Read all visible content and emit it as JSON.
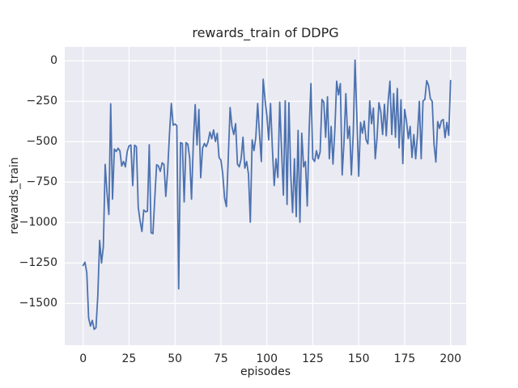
{
  "chart_data": {
    "type": "line",
    "title": "rewards_train of DDPG",
    "xlabel": "episodes",
    "ylabel": "rewards_train",
    "x_ticks": [
      0,
      25,
      50,
      75,
      100,
      125,
      150,
      175,
      200
    ],
    "x_tick_labels": [
      "0",
      "25",
      "50",
      "75",
      "100",
      "125",
      "150",
      "175",
      "200"
    ],
    "y_ticks": [
      0,
      -250,
      -500,
      -750,
      -1000,
      -1250,
      -1500
    ],
    "y_tick_labels": [
      "0",
      "−250",
      "−500",
      "−750",
      "−1000",
      "−1250",
      "−1500"
    ],
    "xlim": [
      -10,
      208.5
    ],
    "ylim": [
      -1761,
      87
    ],
    "grid": true,
    "legend": false,
    "style": "seaborn-darkgrid",
    "colors": {
      "line": "#4c72b0",
      "plot_background": "#eaeaf2",
      "grid": "#ffffff",
      "text": "#262626",
      "figure_background": "#ffffff"
    },
    "series": [
      {
        "name": "rewards_train",
        "x_start": 0,
        "x_step": 1,
        "values": [
          -1265,
          -1245,
          -1310,
          -1590,
          -1640,
          -1605,
          -1660,
          -1650,
          -1450,
          -1110,
          -1250,
          -1150,
          -640,
          -815,
          -950,
          -265,
          -855,
          -545,
          -560,
          -540,
          -555,
          -650,
          -622,
          -655,
          -560,
          -525,
          -520,
          -771,
          -521,
          -530,
          -905,
          -990,
          -1055,
          -922,
          -933,
          -930,
          -518,
          -1063,
          -1068,
          -850,
          -642,
          -650,
          -683,
          -630,
          -640,
          -838,
          -680,
          -450,
          -263,
          -397,
          -390,
          -400,
          -1410,
          -505,
          -510,
          -872,
          -505,
          -515,
          -600,
          -855,
          -500,
          -270,
          -520,
          -300,
          -722,
          -540,
          -510,
          -530,
          -500,
          -440,
          -481,
          -427,
          -498,
          -448,
          -598,
          -613,
          -700,
          -850,
          -901,
          -600,
          -288,
          -405,
          -455,
          -388,
          -638,
          -655,
          -605,
          -472,
          -663,
          -622,
          -700,
          -997,
          -488,
          -555,
          -472,
          -263,
          -455,
          -622,
          -113,
          -238,
          -338,
          -488,
          -263,
          -538,
          -771,
          -605,
          -721,
          -255,
          -550,
          -830,
          -247,
          -888,
          -258,
          -700,
          -938,
          -605,
          -963,
          -430,
          -997,
          -447,
          -655,
          -622,
          -897,
          -430,
          -140,
          -605,
          -622,
          -555,
          -605,
          -563,
          -238,
          -255,
          -472,
          -222,
          -605,
          -405,
          -638,
          -430,
          -125,
          -210,
          -140,
          -705,
          -500,
          -202,
          -480,
          -405,
          -705,
          -455,
          5,
          -350,
          -713,
          -380,
          -447,
          -372,
          -488,
          -513,
          -247,
          -388,
          -292,
          -605,
          -472,
          -258,
          -313,
          -455,
          -268,
          -463,
          -250,
          -125,
          -455,
          -202,
          -472,
          -170,
          -538,
          -240,
          -635,
          -300,
          -372,
          -480,
          -405,
          -597,
          -455,
          -605,
          -455,
          -250,
          -605,
          -247,
          -238,
          -122,
          -150,
          -233,
          -250,
          -516,
          -625,
          -375,
          -417,
          -370,
          -362,
          -475,
          -380,
          -460,
          -121
        ]
      }
    ]
  }
}
